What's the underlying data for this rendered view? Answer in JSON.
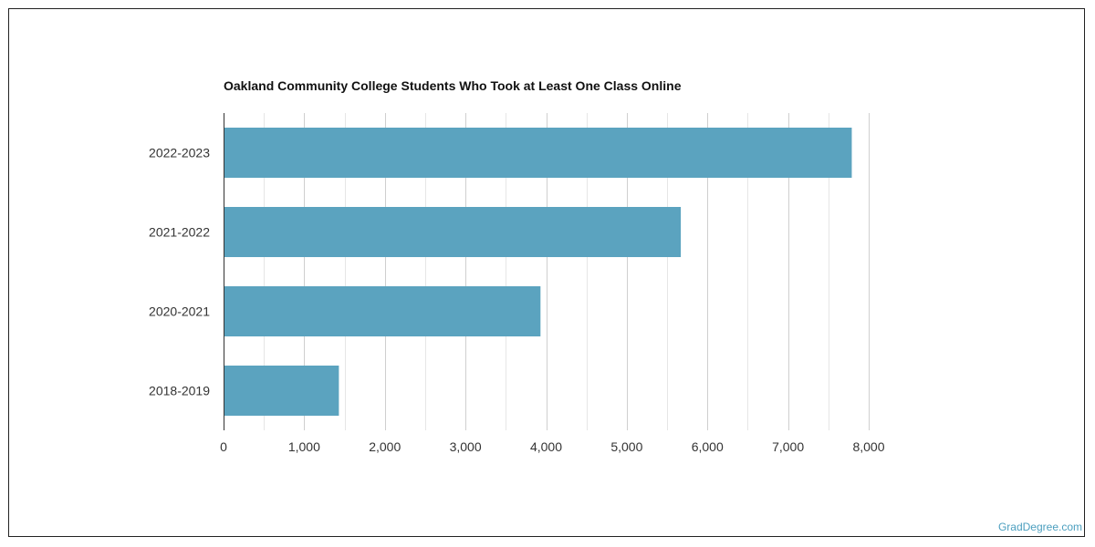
{
  "chart_data": {
    "type": "bar",
    "orientation": "horizontal",
    "title": "Oakland Community College Students Who Took at Least One Class Online",
    "categories": [
      "2022-2023",
      "2021-2022",
      "2020-2021",
      "2018-2019"
    ],
    "values": [
      7790,
      5670,
      3930,
      1430
    ],
    "xlim": [
      0,
      8000
    ],
    "xticks": [
      0,
      1000,
      2000,
      3000,
      4000,
      5000,
      6000,
      7000,
      8000
    ],
    "xtick_labels": [
      "0",
      "1,000",
      "2,000",
      "3,000",
      "4,000",
      "5,000",
      "6,000",
      "7,000",
      "8,000"
    ],
    "xlabel": "",
    "ylabel": "",
    "grid": true,
    "legend": "none",
    "bar_color": "#5ba3bf"
  },
  "footer": {
    "source": "GradDegree.com"
  },
  "colors": {
    "bar": "#5ba3bf",
    "source_link": "#4c9fbf",
    "grid_major": "#cfcfcf",
    "grid_minor": "#e6e6e6",
    "axis": "#333333"
  }
}
